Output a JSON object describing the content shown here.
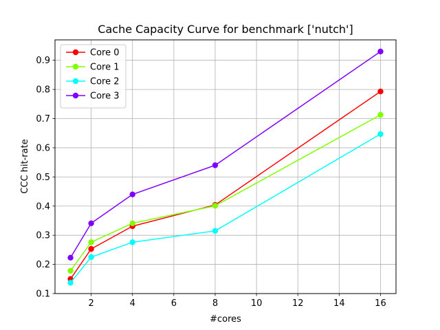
{
  "chart_data": {
    "type": "line",
    "title": "Cache Capacity Curve for benchmark ['nutch']",
    "xlabel": "#cores",
    "ylabel": "CCC hit-rate",
    "x": [
      1,
      2,
      4,
      8,
      16
    ],
    "xlim": [
      0.25,
      16.75
    ],
    "ylim": [
      0.1,
      0.97
    ],
    "xticks": [
      2,
      4,
      6,
      8,
      10,
      12,
      14,
      16
    ],
    "yticks": [
      0.1,
      0.2,
      0.3,
      0.4,
      0.5,
      0.6,
      0.7,
      0.8,
      0.9
    ],
    "grid": true,
    "legend_position": "upper-left",
    "series": [
      {
        "name": "Core 0",
        "color": "#ff0000",
        "values": [
          0.15,
          0.253,
          0.331,
          0.404,
          0.793
        ]
      },
      {
        "name": "Core 1",
        "color": "#80ff00",
        "values": [
          0.178,
          0.276,
          0.341,
          0.401,
          0.713
        ]
      },
      {
        "name": "Core 2",
        "color": "#00ffff",
        "values": [
          0.137,
          0.225,
          0.276,
          0.315,
          0.647
        ]
      },
      {
        "name": "Core 3",
        "color": "#7f00ff",
        "values": [
          0.223,
          0.341,
          0.44,
          0.54,
          0.93
        ]
      }
    ]
  }
}
